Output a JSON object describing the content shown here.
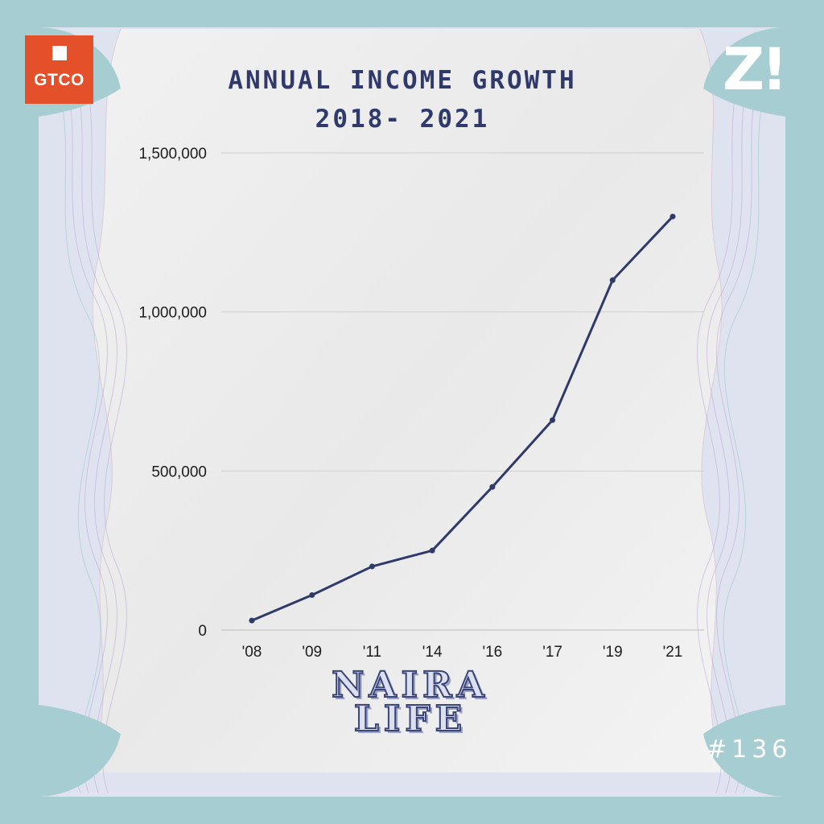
{
  "header": {
    "title_line1": "ANNUAL INCOME GROWTH",
    "title_line2": "2018- 2021"
  },
  "logos": {
    "left_text": "GTCO",
    "right_text": "Z!"
  },
  "footer": {
    "brand_line1": "NAIRA",
    "brand_line2": "LIFE",
    "issue_number": "#136"
  },
  "colors": {
    "background": "#a6cdd1",
    "line": "#2f3a6b",
    "gtco_brand": "#e4502a"
  },
  "chart_data": {
    "type": "line",
    "title": "ANNUAL INCOME GROWTH 2018- 2021",
    "xlabel": "",
    "ylabel": "",
    "categories": [
      "'08",
      "'09",
      "'11",
      "'14",
      "'16",
      "'17",
      "'19",
      "'21"
    ],
    "series": [
      {
        "values": [
          30000,
          110000,
          200000,
          250000,
          450000,
          660000,
          1100000,
          1300000
        ]
      }
    ],
    "ylim": [
      0,
      1500000
    ],
    "yticks": [
      "0",
      "500,000",
      "1,000,000",
      "1,500,000"
    ],
    "ytick_values": [
      0,
      500000,
      1000000,
      1500000
    ],
    "grid": true,
    "legend": "none"
  }
}
